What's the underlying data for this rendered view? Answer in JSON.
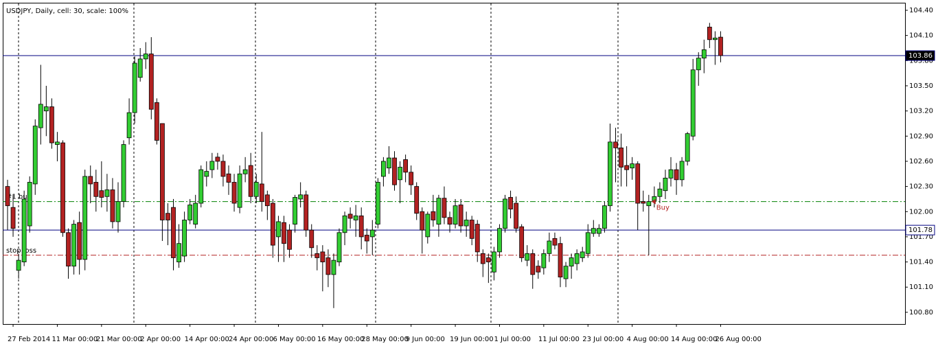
{
  "chart_data": {
    "type": "candlestick",
    "title": "USDJPY, Daily, cell: 30, scale: 100%",
    "up_color": "#32cd32",
    "down_color": "#b22222",
    "categories": [
      null,
      "27 Feb 2014",
      null,
      null,
      null,
      null,
      null,
      null,
      null,
      "11 Mar 00:00",
      null,
      null,
      null,
      null,
      null,
      null,
      null,
      "21 Mar 00:00",
      null,
      null,
      null,
      null,
      null,
      null,
      null,
      "2 Apr 00:00",
      null,
      null,
      null,
      null,
      null,
      null,
      null,
      "14 Apr 00:00",
      null,
      null,
      null,
      null,
      null,
      null,
      null,
      "24 Apr 00:00",
      null,
      null,
      null,
      null,
      null,
      null,
      null,
      "6 May 00:00",
      null,
      null,
      null,
      null,
      null,
      null,
      null,
      "16 May 00:00",
      null,
      null,
      null,
      null,
      null,
      null,
      null,
      "28 May 00:00",
      null,
      null,
      null,
      null,
      null,
      null,
      null,
      "9 Jun 00:00",
      null,
      null,
      null,
      null,
      null,
      null,
      null,
      "19 Jun 00:00",
      null,
      null,
      null,
      null,
      null,
      null,
      null,
      "1 Jul 00:00",
      null,
      null,
      null,
      null,
      null,
      null,
      null,
      "11 Jul 00:00",
      null,
      null,
      null,
      null,
      null,
      null,
      null,
      "23 Jul 00:00",
      null,
      null,
      null,
      null,
      null,
      null,
      null,
      "4 Aug 00:00",
      null,
      null,
      null,
      null,
      null,
      null,
      null,
      "14 Aug 00:00",
      null,
      null,
      null,
      null,
      null,
      null,
      null,
      "26 Aug 00:00"
    ],
    "ohlc": [
      [
        102.3,
        102.38,
        101.78,
        102.07
      ],
      [
        102.05,
        102.2,
        101.7,
        101.8
      ],
      [
        101.3,
        101.5,
        101.2,
        101.42
      ],
      [
        101.4,
        102.25,
        101.35,
        102.15
      ],
      [
        101.83,
        102.42,
        101.75,
        102.35
      ],
      [
        102.33,
        103.1,
        102.2,
        103.02
      ],
      [
        103.0,
        103.75,
        102.8,
        103.28
      ],
      [
        103.2,
        103.5,
        102.9,
        103.25
      ],
      [
        103.25,
        103.35,
        102.75,
        102.82
      ],
      [
        102.8,
        102.95,
        102.6,
        102.83
      ],
      [
        102.82,
        102.85,
        101.7,
        101.75
      ],
      [
        101.75,
        101.8,
        101.2,
        101.35
      ],
      [
        101.35,
        101.9,
        101.25,
        101.85
      ],
      [
        101.87,
        102.0,
        101.25,
        101.43
      ],
      [
        101.43,
        102.5,
        101.3,
        102.42
      ],
      [
        102.42,
        102.55,
        102.1,
        102.33
      ],
      [
        102.35,
        102.5,
        102.0,
        102.18
      ],
      [
        102.25,
        102.6,
        102.05,
        102.17
      ],
      [
        102.18,
        102.45,
        102.0,
        102.26
      ],
      [
        102.26,
        102.4,
        101.8,
        101.88
      ],
      [
        101.88,
        102.35,
        101.75,
        102.12
      ],
      [
        102.12,
        102.85,
        102.05,
        102.8
      ],
      [
        102.88,
        103.35,
        102.8,
        103.18
      ],
      [
        103.18,
        103.85,
        103.05,
        103.77
      ],
      [
        103.6,
        103.95,
        103.55,
        103.82
      ],
      [
        103.82,
        104.02,
        103.7,
        103.88
      ],
      [
        103.88,
        104.08,
        103.1,
        103.22
      ],
      [
        103.3,
        103.35,
        102.8,
        102.85
      ],
      [
        103.05,
        103.05,
        101.65,
        101.9
      ],
      [
        101.98,
        102.1,
        101.6,
        101.9
      ],
      [
        102.05,
        102.15,
        101.3,
        101.45
      ],
      [
        101.4,
        101.85,
        101.33,
        101.62
      ],
      [
        101.47,
        102.0,
        101.4,
        101.9
      ],
      [
        101.9,
        102.15,
        101.85,
        102.08
      ],
      [
        101.85,
        102.2,
        101.8,
        102.1
      ],
      [
        102.1,
        102.55,
        102.05,
        102.5
      ],
      [
        102.42,
        102.6,
        102.3,
        102.48
      ],
      [
        102.5,
        102.7,
        102.4,
        102.6
      ],
      [
        102.65,
        102.7,
        102.5,
        102.6
      ],
      [
        102.6,
        102.68,
        102.3,
        102.42
      ],
      [
        102.45,
        102.55,
        102.2,
        102.35
      ],
      [
        102.35,
        102.45,
        102.0,
        102.1
      ],
      [
        102.05,
        102.55,
        101.98,
        102.45
      ],
      [
        102.45,
        102.65,
        102.35,
        102.5
      ],
      [
        102.55,
        102.7,
        102.1,
        102.18
      ],
      [
        102.18,
        102.45,
        102.1,
        102.35
      ],
      [
        102.33,
        102.95,
        102.0,
        102.12
      ],
      [
        102.2,
        102.25,
        101.9,
        102.07
      ],
      [
        102.1,
        102.15,
        101.45,
        101.6
      ],
      [
        101.7,
        101.95,
        101.4,
        101.88
      ],
      [
        101.87,
        101.95,
        101.4,
        101.62
      ],
      [
        101.78,
        101.85,
        101.45,
        101.55
      ],
      [
        101.85,
        102.2,
        101.75,
        102.17
      ],
      [
        102.15,
        102.35,
        102.05,
        102.2
      ],
      [
        102.2,
        102.25,
        101.7,
        101.78
      ],
      [
        101.78,
        101.85,
        101.45,
        101.57
      ],
      [
        101.5,
        101.6,
        101.3,
        101.45
      ],
      [
        101.52,
        101.6,
        101.05,
        101.4
      ],
      [
        101.45,
        101.55,
        101.1,
        101.25
      ],
      [
        101.25,
        101.5,
        100.85,
        101.42
      ],
      [
        101.4,
        101.8,
        101.35,
        101.75
      ],
      [
        101.75,
        102.0,
        101.6,
        101.95
      ],
      [
        101.97,
        102.05,
        101.8,
        101.92
      ],
      [
        101.9,
        102.08,
        101.7,
        101.95
      ],
      [
        101.95,
        102.05,
        101.55,
        101.7
      ],
      [
        101.72,
        101.8,
        101.5,
        101.65
      ],
      [
        101.7,
        101.9,
        101.48,
        101.78
      ],
      [
        101.85,
        102.4,
        101.8,
        102.35
      ],
      [
        102.42,
        102.65,
        102.3,
        102.6
      ],
      [
        102.52,
        102.78,
        102.45,
        102.64
      ],
      [
        102.64,
        102.72,
        102.25,
        102.32
      ],
      [
        102.38,
        102.6,
        102.1,
        102.53
      ],
      [
        102.62,
        102.68,
        102.35,
        102.47
      ],
      [
        102.47,
        102.55,
        102.2,
        102.32
      ],
      [
        102.3,
        102.35,
        101.9,
        101.98
      ],
      [
        102.0,
        102.05,
        101.5,
        101.78
      ],
      [
        101.7,
        102.0,
        101.62,
        101.97
      ],
      [
        102.0,
        102.2,
        101.82,
        101.9
      ],
      [
        101.85,
        102.2,
        101.7,
        102.16
      ],
      [
        102.16,
        102.3,
        101.85,
        101.93
      ],
      [
        101.93,
        102.0,
        101.75,
        101.85
      ],
      [
        101.85,
        102.15,
        101.8,
        102.07
      ],
      [
        102.08,
        102.15,
        101.75,
        101.83
      ],
      [
        101.83,
        102.0,
        101.7,
        101.9
      ],
      [
        101.9,
        101.95,
        101.6,
        101.68
      ],
      [
        101.85,
        101.9,
        101.4,
        101.52
      ],
      [
        101.5,
        101.55,
        101.22,
        101.38
      ],
      [
        101.45,
        101.5,
        101.15,
        101.4
      ],
      [
        101.28,
        101.58,
        101.18,
        101.52
      ],
      [
        101.52,
        101.85,
        101.45,
        101.8
      ],
      [
        101.8,
        102.2,
        101.75,
        102.15
      ],
      [
        102.17,
        102.25,
        101.92,
        102.03
      ],
      [
        102.1,
        102.18,
        101.75,
        101.8
      ],
      [
        101.82,
        101.85,
        101.4,
        101.45
      ],
      [
        101.42,
        101.6,
        101.35,
        101.5
      ],
      [
        101.5,
        101.55,
        101.08,
        101.25
      ],
      [
        101.35,
        101.42,
        101.2,
        101.28
      ],
      [
        101.33,
        101.55,
        101.25,
        101.5
      ],
      [
        101.5,
        101.75,
        101.4,
        101.65
      ],
      [
        101.68,
        101.75,
        101.55,
        101.6
      ],
      [
        101.62,
        101.7,
        101.1,
        101.22
      ],
      [
        101.2,
        101.4,
        101.1,
        101.35
      ],
      [
        101.35,
        101.5,
        101.2,
        101.45
      ],
      [
        101.38,
        101.55,
        101.3,
        101.5
      ],
      [
        101.45,
        101.58,
        101.4,
        101.52
      ],
      [
        101.5,
        101.85,
        101.45,
        101.75
      ],
      [
        101.74,
        101.9,
        101.7,
        101.8
      ],
      [
        101.74,
        101.85,
        101.7,
        101.8
      ],
      [
        101.8,
        102.12,
        101.75,
        102.07
      ],
      [
        102.07,
        103.05,
        102.0,
        102.83
      ],
      [
        102.83,
        103.0,
        102.35,
        102.76
      ],
      [
        102.76,
        102.93,
        102.3,
        102.53
      ],
      [
        102.55,
        102.78,
        102.3,
        102.5
      ],
      [
        102.52,
        102.65,
        102.38,
        102.57
      ],
      [
        102.57,
        102.6,
        101.78,
        102.1
      ],
      [
        102.12,
        102.25,
        102.0,
        102.1
      ],
      [
        102.07,
        102.2,
        101.48,
        102.12
      ],
      [
        102.13,
        102.3,
        102.05,
        102.18
      ],
      [
        102.18,
        102.35,
        102.1,
        102.27
      ],
      [
        102.25,
        102.5,
        102.15,
        102.4
      ],
      [
        102.4,
        102.65,
        102.3,
        102.5
      ],
      [
        102.5,
        102.58,
        102.2,
        102.38
      ],
      [
        102.38,
        102.65,
        102.3,
        102.6
      ],
      [
        102.6,
        102.95,
        102.55,
        102.93
      ],
      [
        102.9,
        103.82,
        102.85,
        103.69
      ],
      [
        103.69,
        103.9,
        103.5,
        103.83
      ],
      [
        103.83,
        104.05,
        103.65,
        103.93
      ],
      [
        104.2,
        104.25,
        103.95,
        104.05
      ],
      [
        104.05,
        104.15,
        103.75,
        104.07
      ],
      [
        104.08,
        104.15,
        103.78,
        103.86
      ]
    ],
    "ylim": [
      100.66,
      104.49
    ],
    "yticks": [
      {
        "value": 104.4,
        "label": "104.40"
      },
      {
        "value": 104.1,
        "label": "104.10"
      },
      {
        "value": 103.8,
        "label": "103.80"
      },
      {
        "value": 103.5,
        "label": "103.50"
      },
      {
        "value": 103.2,
        "label": "103.20"
      },
      {
        "value": 102.9,
        "label": "102.90"
      },
      {
        "value": 102.6,
        "label": "102.60"
      },
      {
        "value": 102.3,
        "label": "102.30"
      },
      {
        "value": 102.0,
        "label": "102.00"
      },
      {
        "value": 101.7,
        "label": "101.70"
      },
      {
        "value": 101.4,
        "label": "101.40"
      },
      {
        "value": 101.1,
        "label": "101.10"
      },
      {
        "value": 100.8,
        "label": "100.80"
      }
    ],
    "price_lines": [
      {
        "value": 103.86,
        "color": "#000080"
      },
      {
        "value": 101.78,
        "color": "#000080"
      }
    ],
    "levels": [
      {
        "name": "#1 buy",
        "value": 102.12,
        "color": "#008000"
      },
      {
        "name": "stop loss",
        "value": 101.48,
        "color": "#b22222"
      }
    ],
    "annotation": {
      "text": "Buy",
      "color": "#b22222"
    }
  }
}
